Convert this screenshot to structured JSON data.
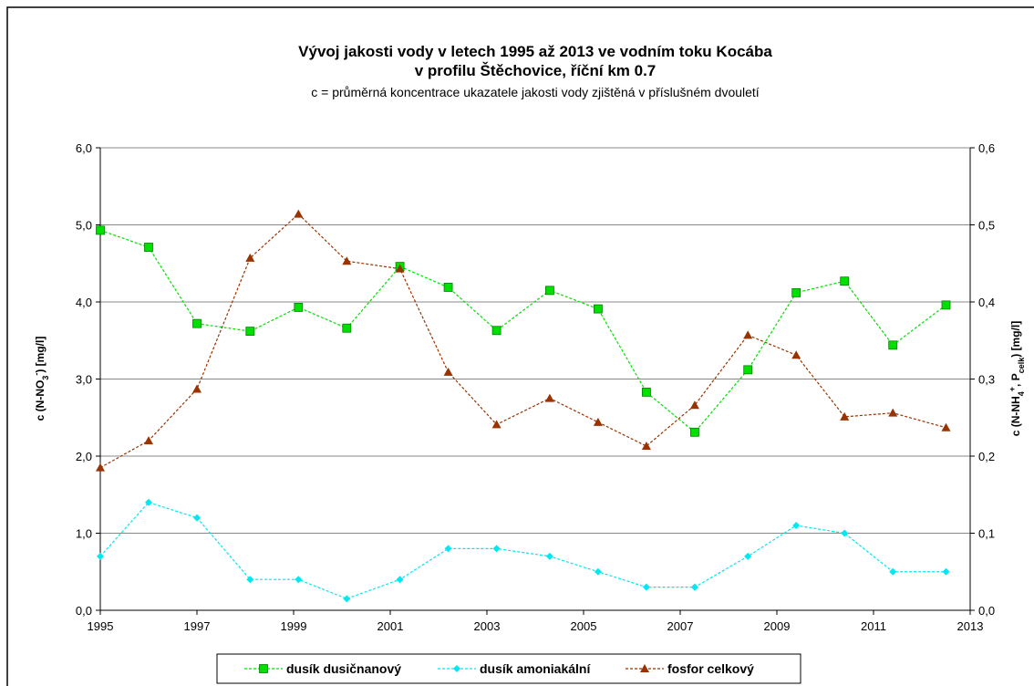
{
  "chart_data": {
    "type": "line",
    "title": [
      "Vývoj jakosti vody v letech 1995 až 2013 ve vodním toku Kocába",
      "v profilu Štěchovice, říční km 0.7"
    ],
    "subtitle": "c = průměrná koncentrace ukazatele jakosti vody zjištěná v příslušném dvouletí",
    "y_label": [
      "c (N-NO",
      "3",
      "-",
      ") [mg/l]"
    ],
    "y2_label": [
      "c (N-NH",
      "4",
      "+",
      ", P",
      "celk",
      ") [mg/l]"
    ],
    "x": [
      1995.0,
      1996.0,
      1997.0,
      1998.1,
      1999.1,
      2000.1,
      2001.2,
      2002.2,
      2003.2,
      2004.3,
      2005.3,
      2006.3,
      2007.3,
      2008.4,
      2009.4,
      2010.4,
      2011.4,
      2012.5
    ],
    "series": [
      {
        "name": "dusík dusičnanový",
        "color": "#00e000",
        "marker": "square",
        "values": [
          4.93,
          4.71,
          3.72,
          3.62,
          3.93,
          3.66,
          4.46,
          4.19,
          3.63,
          4.15,
          3.91,
          2.83,
          2.31,
          3.12,
          4.12,
          4.27,
          3.44,
          3.96
        ]
      },
      {
        "name": "dusík amoniakální",
        "color": "#00e8f0",
        "marker": "diamond",
        "axis": "y2",
        "values": [
          0.07,
          0.14,
          0.12,
          0.04,
          0.04,
          0.015,
          0.04,
          0.08,
          0.08,
          0.07,
          0.05,
          0.03,
          0.03,
          0.07,
          0.11,
          0.1,
          0.05,
          0.05
        ]
      },
      {
        "name": "fosfor celkový",
        "color": "#993300",
        "marker": "triangle",
        "axis": "y2",
        "values": [
          0.185,
          0.22,
          0.287,
          0.457,
          0.514,
          0.453,
          0.443,
          0.309,
          0.241,
          0.275,
          0.244,
          0.213,
          0.266,
          0.357,
          0.331,
          0.251,
          0.256,
          0.237
        ]
      }
    ],
    "xlim": [
      1995,
      2013
    ],
    "xticks": [
      1995,
      1997,
      1999,
      2001,
      2003,
      2005,
      2007,
      2009,
      2011,
      2013
    ],
    "ylim": [
      0,
      6
    ],
    "yticks": [
      {
        "value": 0,
        "label": "0,0"
      },
      {
        "value": 1,
        "label": "1,0"
      },
      {
        "value": 2,
        "label": "2,0"
      },
      {
        "value": 3,
        "label": "3,0"
      },
      {
        "value": 4,
        "label": "4,0"
      },
      {
        "value": 5,
        "label": "5,0"
      },
      {
        "value": 6,
        "label": "6,0"
      }
    ],
    "y2lim": [
      0,
      0.6
    ],
    "y2ticks": [
      {
        "value": 0,
        "label": "0,0"
      },
      {
        "value": 0.1,
        "label": "0,1"
      },
      {
        "value": 0.2,
        "label": "0,2"
      },
      {
        "value": 0.3,
        "label": "0,3"
      },
      {
        "value": 0.4,
        "label": "0,4"
      },
      {
        "value": 0.5,
        "label": "0,5"
      },
      {
        "value": 0.6,
        "label": "0,6"
      }
    ],
    "grid": true,
    "legend": "bottom"
  }
}
